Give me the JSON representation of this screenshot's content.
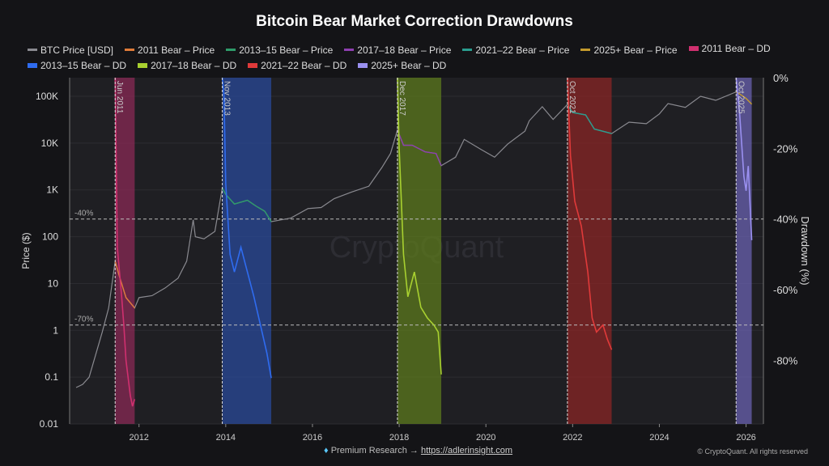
{
  "chart_data": {
    "type": "line",
    "title": "Bitcoin Bear Market Correction Drawdowns",
    "ylabel": "Price ($)",
    "y2label": "Drawdown (%)",
    "y_scale": "log",
    "ylim": [
      0.01,
      250000
    ],
    "y2lim": [
      -98,
      0
    ],
    "xlim": [
      2010.4,
      2026.4
    ],
    "x_ticks": [
      "2012",
      "2014",
      "2016",
      "2018",
      "2020",
      "2022",
      "2024",
      "2026"
    ],
    "y_ticks": [
      "0.01",
      "0.1",
      "1",
      "10",
      "100",
      "1K",
      "10K",
      "100K"
    ],
    "y2_ticks": [
      "0%",
      "-20%",
      "-40%",
      "-60%",
      "-80%"
    ],
    "grid": true,
    "watermark": "CryptoQuant",
    "reference_lines": [
      {
        "value": -40,
        "label": "-40%"
      },
      {
        "value": -70,
        "label": "-70%"
      }
    ],
    "legend_position": "top",
    "legend": [
      "BTC Price [USD]",
      "2011 Bear – Price",
      "2013–15 Bear – Price",
      "2017–18 Bear – Price",
      "2021–22 Bear – Price",
      "2025+ Bear – Price",
      "2011 Bear – DD",
      "2013–15 Bear – DD",
      "2017–18 Bear – DD",
      "2021–22 Bear – DD",
      "2025+ Bear – DD"
    ],
    "price_series": {
      "name": "BTC Price [USD]",
      "color": "#8a8a90",
      "x": [
        2010.55,
        2010.7,
        2010.85,
        2011.0,
        2011.15,
        2011.3,
        2011.45,
        2011.55,
        2011.7,
        2011.9,
        2012.0,
        2012.3,
        2012.6,
        2012.9,
        2013.1,
        2013.25,
        2013.3,
        2013.5,
        2013.75,
        2013.92,
        2014.0,
        2014.2,
        2014.5,
        2014.7,
        2014.9,
        2015.05,
        2015.5,
        2015.9,
        2016.2,
        2016.5,
        2016.9,
        2017.3,
        2017.6,
        2017.8,
        2017.96,
        2018.1,
        2018.3,
        2018.6,
        2018.85,
        2018.97,
        2019.3,
        2019.5,
        2019.9,
        2020.2,
        2020.5,
        2020.9,
        2021.0,
        2021.3,
        2021.55,
        2021.88,
        2022.0,
        2022.3,
        2022.5,
        2022.9,
        2023.3,
        2023.7,
        2024.0,
        2024.2,
        2024.6,
        2024.95,
        2025.3,
        2025.77,
        2025.9,
        2026.0,
        2026.13
      ],
      "y": [
        0.06,
        0.07,
        0.1,
        0.3,
        0.9,
        3,
        30,
        14,
        5,
        3,
        5,
        5.5,
        8,
        13,
        30,
        230,
        100,
        90,
        130,
        1100,
        800,
        500,
        600,
        450,
        350,
        210,
        250,
        400,
        420,
        650,
        900,
        1200,
        3000,
        6000,
        19000,
        9000,
        9000,
        6500,
        6000,
        3300,
        5000,
        12000,
        7200,
        5000,
        9500,
        18000,
        30000,
        60000,
        32000,
        67000,
        45000,
        40000,
        20000,
        16000,
        28000,
        26000,
        42000,
        70000,
        58000,
        100000,
        82000,
        124000,
        105000,
        90000,
        68000
      ]
    },
    "bears": [
      {
        "name": "2011",
        "label": "Jun 2011",
        "start": 2011.45,
        "end": 2011.9,
        "price_color": "#e07b39",
        "dd_color": "#d0306f",
        "band_color": "#8a2a55",
        "dd_x": [
          2011.45,
          2011.5,
          2011.55,
          2011.6,
          2011.65,
          2011.7,
          2011.75,
          2011.8,
          2011.85,
          2011.9
        ],
        "dd_y": [
          0,
          -48,
          -55,
          -62,
          -70,
          -80,
          -85,
          -90,
          -93,
          -91
        ]
      },
      {
        "name": "2013–15",
        "label": "Nov 2013",
        "start": 2013.92,
        "end": 2015.05,
        "price_color": "#2e9b6a",
        "dd_color": "#2f6cf0",
        "band_color": "#2a4a9a",
        "dd_x": [
          2013.92,
          2013.96,
          2014.0,
          2014.1,
          2014.2,
          2014.35,
          2014.5,
          2014.65,
          2014.8,
          2014.95,
          2015.05
        ],
        "dd_y": [
          0,
          -5,
          -30,
          -50,
          -55,
          -48,
          -55,
          -62,
          -70,
          -78,
          -85
        ]
      },
      {
        "name": "2017–18",
        "label": "Dec 2017",
        "start": 2017.96,
        "end": 2018.97,
        "price_color": "#8e3fb0",
        "dd_color": "#a8d030",
        "band_color": "#5c7a1e",
        "dd_x": [
          2017.96,
          2018.0,
          2018.1,
          2018.2,
          2018.35,
          2018.5,
          2018.65,
          2018.8,
          2018.9,
          2018.97
        ],
        "dd_y": [
          0,
          -20,
          -50,
          -62,
          -55,
          -65,
          -68,
          -70,
          -72,
          -84
        ]
      },
      {
        "name": "2021–22",
        "label": "Oct 2021",
        "start": 2021.88,
        "end": 2022.9,
        "price_color": "#2a9d8f",
        "dd_color": "#e03a3a",
        "band_color": "#8a2626",
        "dd_x": [
          2021.88,
          2021.95,
          2022.05,
          2022.2,
          2022.35,
          2022.45,
          2022.55,
          2022.7,
          2022.8,
          2022.9
        ],
        "dd_y": [
          0,
          -22,
          -35,
          -42,
          -55,
          -68,
          -72,
          -70,
          -74,
          -77
        ]
      },
      {
        "name": "2025+",
        "label": "Oct 2025",
        "start": 2025.77,
        "end": 2026.13,
        "price_color": "#c49a2c",
        "dd_color": "#9a90f0",
        "band_color": "#6a62b0",
        "dd_x": [
          2025.77,
          2025.85,
          2025.95,
          2026.0,
          2026.05,
          2026.1,
          2026.13
        ],
        "dd_y": [
          0,
          -10,
          -28,
          -32,
          -25,
          -38,
          -46
        ]
      }
    ]
  },
  "footer": {
    "gem_icon": "diamond",
    "premium": "Premium Research →",
    "link": "https://adlerinsight.com",
    "copyright": "© CryptoQuant. All rights reserved"
  }
}
